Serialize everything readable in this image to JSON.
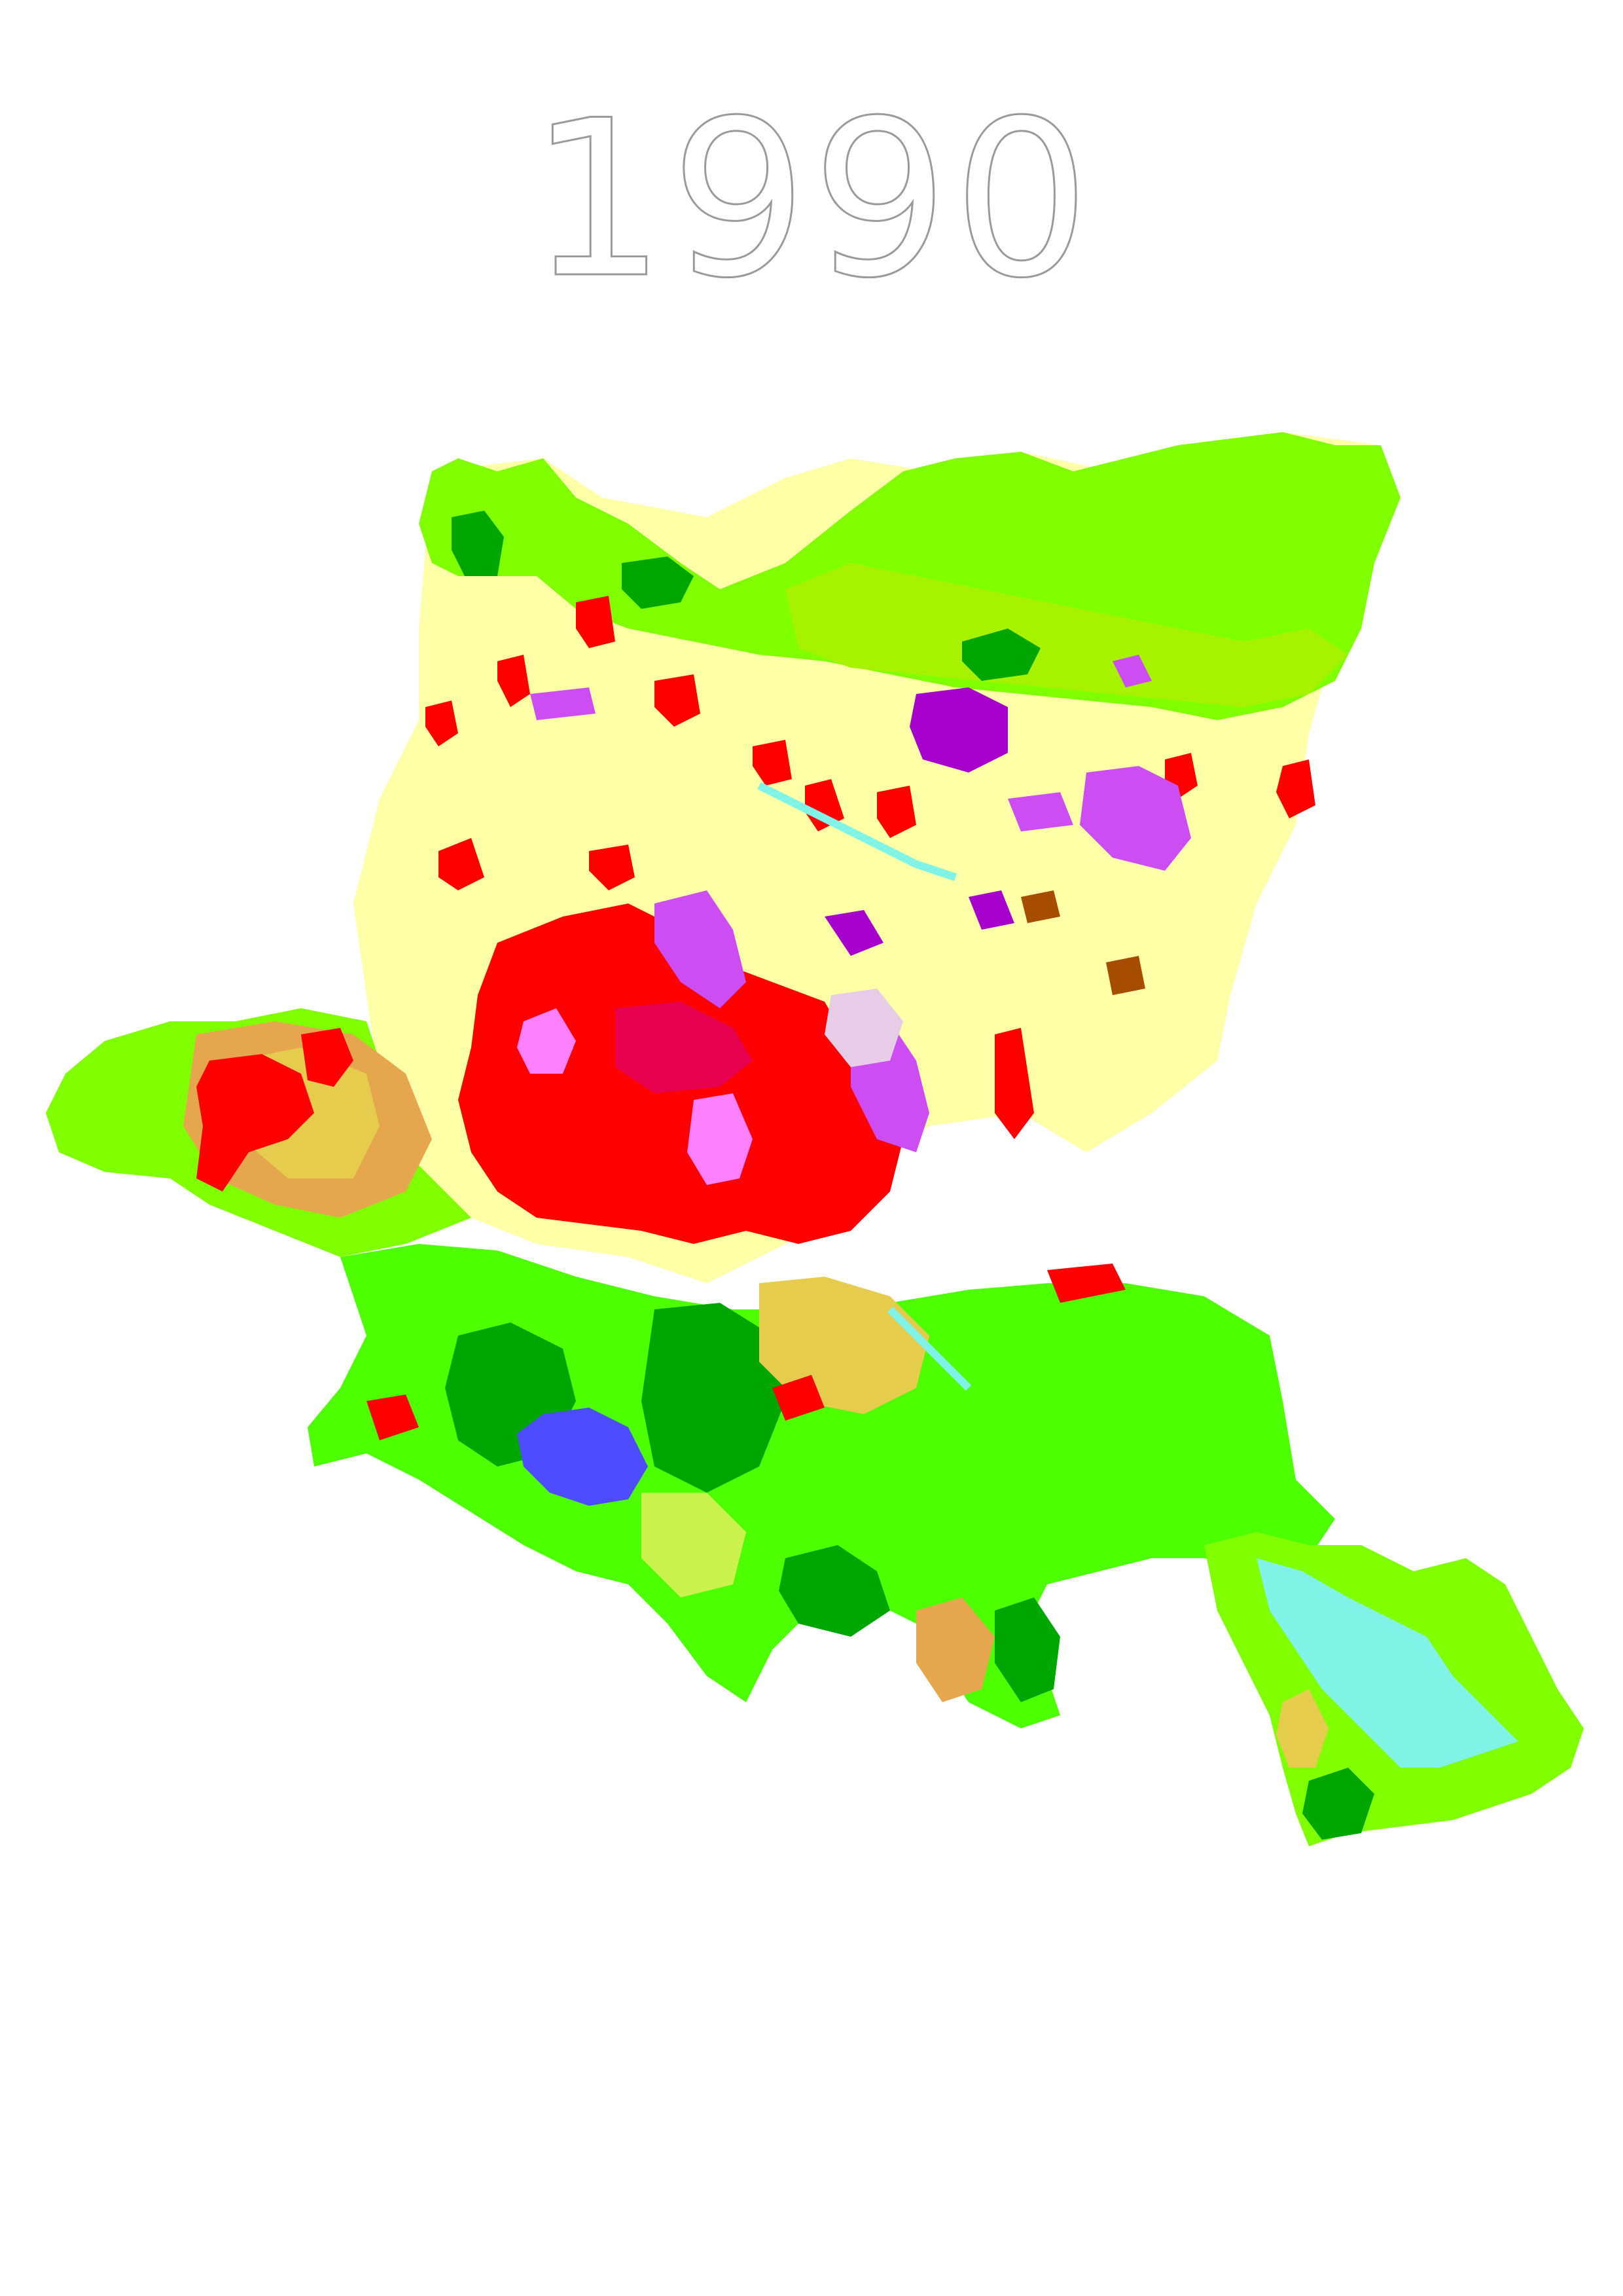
{
  "title": "1990",
  "map": {
    "colors": {
      "urban_fabric": "#ff0000",
      "urban_dense": "#e6004d",
      "industrial": "#cc4df2",
      "industrial_dark": "#a600cc",
      "urban_green": "#ff80ff",
      "sport_leisure": "#e6cce6",
      "mineral_extraction": "#a64d00",
      "arable_land": "#ffffa8",
      "complex_cultivation": "#e6cc4d",
      "agriculture_natural": "#e6e64d",
      "pastures": "#e6a64d",
      "broadleaf_forest": "#80ff00",
      "coniferous_forest": "#00a600",
      "mixed_forest": "#4dff00",
      "natural_grassland": "#ccf24d",
      "transitional_woodland": "#a6f200",
      "water_bodies": "#80f2e6",
      "water_courses": "#00ccf2",
      "reservoir": "#4d4dff"
    }
  }
}
